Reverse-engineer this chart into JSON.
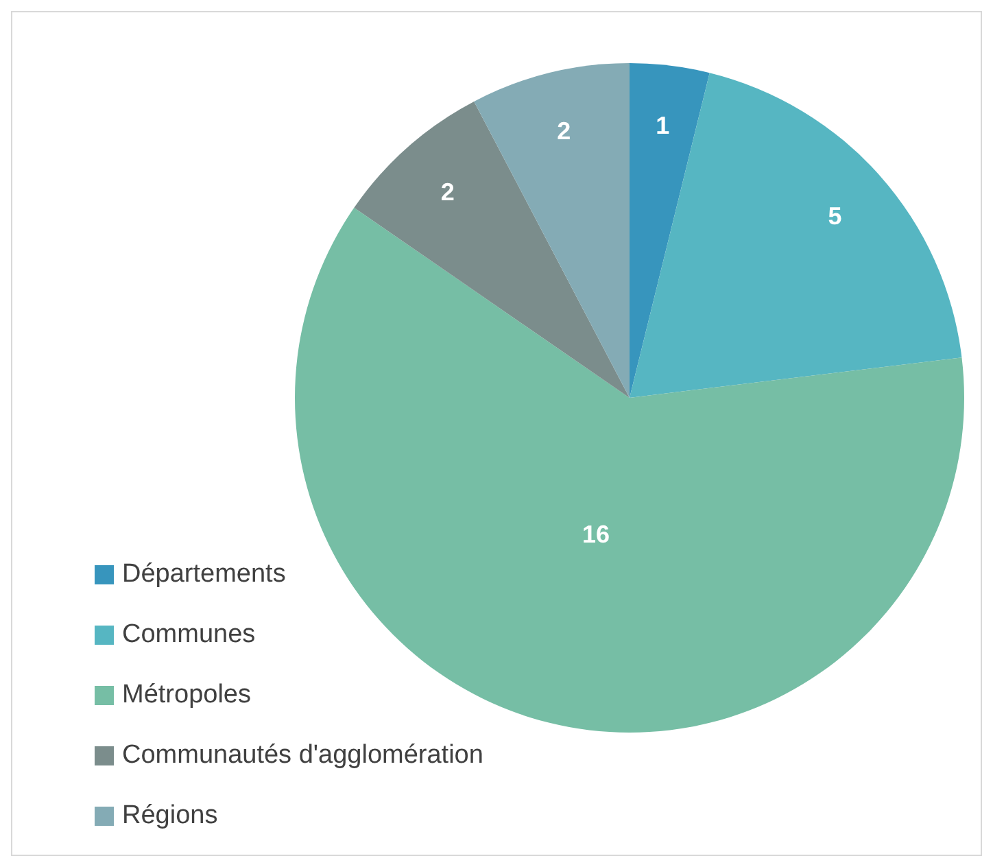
{
  "chart_data": {
    "type": "pie",
    "categories": [
      "Départements",
      "Communes",
      "Métropoles",
      "Communautés d'agglomération",
      "Régions"
    ],
    "values": [
      1,
      5,
      16,
      2,
      2
    ],
    "colors": [
      "#3795bd",
      "#56b6c2",
      "#76bea5",
      "#7b8d8c",
      "#84abb5"
    ],
    "data_labels": true,
    "legend": "bottom left"
  }
}
